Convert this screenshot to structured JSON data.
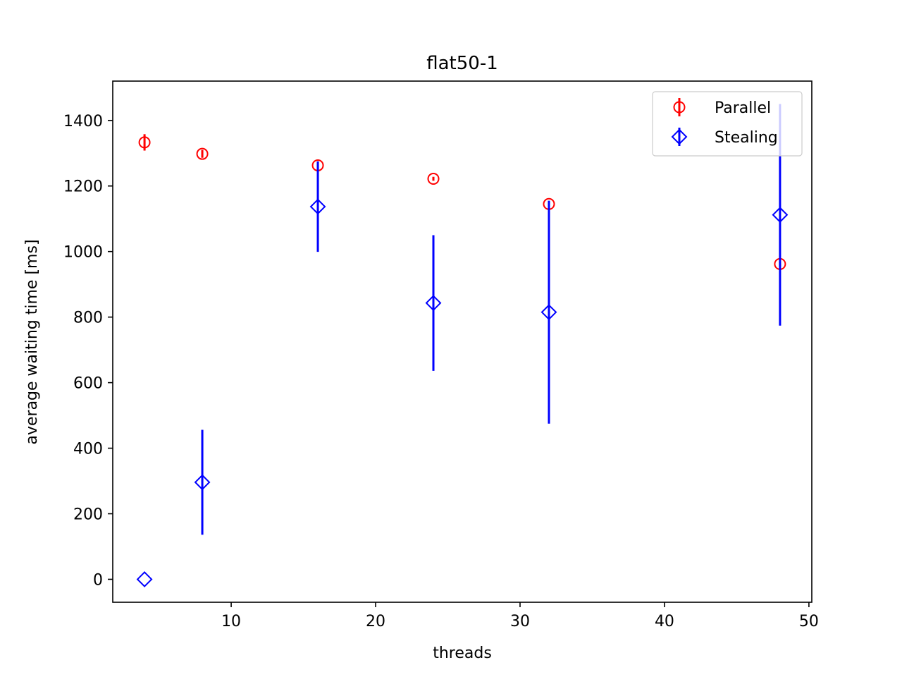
{
  "chart_data": {
    "type": "scatter",
    "title": "flat50-1",
    "xlabel": "threads",
    "ylabel": "average waiting time [ms]",
    "xlim": [
      1.8,
      50.2
    ],
    "ylim": [
      -70,
      1520
    ],
    "xticks": [
      10,
      20,
      30,
      40,
      50
    ],
    "yticks": [
      0,
      200,
      400,
      600,
      800,
      1000,
      1200,
      1400
    ],
    "grid": false,
    "legend_position": "top-right",
    "series": [
      {
        "name": "Parallel",
        "marker": "circle",
        "color": "#ff0000",
        "points": [
          {
            "x": 4,
            "y": 1333,
            "err": 25
          },
          {
            "x": 8,
            "y": 1298,
            "err": 12
          },
          {
            "x": 16,
            "y": 1263,
            "err": 12
          },
          {
            "x": 24,
            "y": 1222,
            "err": 6
          },
          {
            "x": 32,
            "y": 1145,
            "err": 8
          },
          {
            "x": 48,
            "y": 962,
            "err": 8
          }
        ]
      },
      {
        "name": "Stealing",
        "marker": "diamond",
        "color": "#0000ff",
        "points": [
          {
            "x": 4,
            "y": 0,
            "err": 0
          },
          {
            "x": 8,
            "y": 296,
            "err": 160
          },
          {
            "x": 16,
            "y": 1137,
            "err": 138
          },
          {
            "x": 24,
            "y": 843,
            "err": 207
          },
          {
            "x": 32,
            "y": 815,
            "err": 340
          },
          {
            "x": 48,
            "y": 1112,
            "err": 338
          }
        ]
      }
    ]
  }
}
